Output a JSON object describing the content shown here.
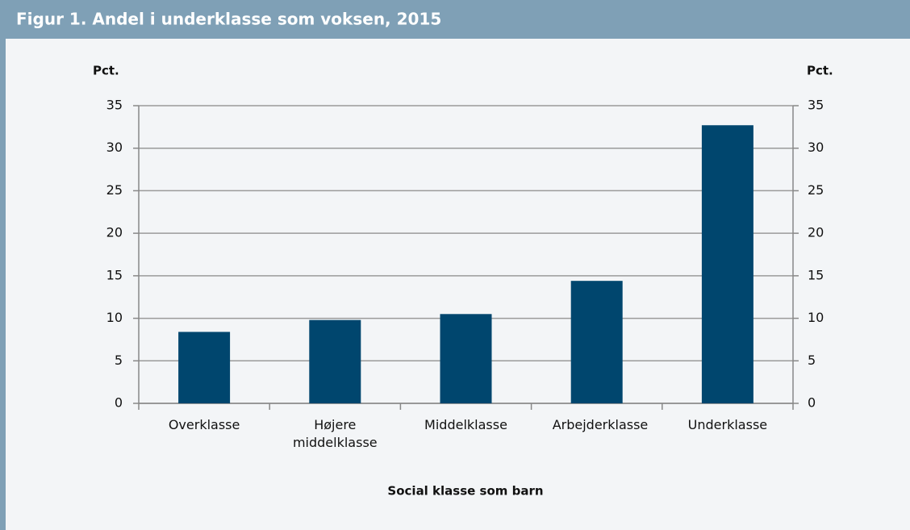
{
  "chart_data": {
    "type": "bar",
    "title": "Figur 1. Andel i underklasse som voksen, 2015",
    "categories": [
      "Overklasse",
      "Højere middelklasse",
      "Middelklasse",
      "Arbejderklasse",
      "Underklasse"
    ],
    "values": [
      8.4,
      9.8,
      10.5,
      14.4,
      32.7
    ],
    "color": "#00466e",
    "ylabel": "Pct.",
    "y2label": "Pct.",
    "xlabel": "Social klasse som barn",
    "ylim": [
      0,
      35
    ],
    "yticks": [
      0,
      5,
      10,
      15,
      20,
      25,
      30,
      35
    ],
    "y2lim": [
      0,
      35
    ],
    "y2ticks": [
      0,
      5,
      10,
      15,
      20,
      25,
      30,
      35
    ],
    "grid": true
  }
}
